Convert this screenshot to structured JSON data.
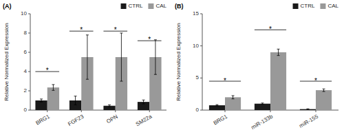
{
  "chart_data": [
    {
      "type": "bar",
      "title": "(A)",
      "categories": [
        "BRG1",
        "FGF23",
        "OPN",
        "SM22a"
      ],
      "series": [
        {
          "name": "CTRL",
          "color": "#1a1a1a",
          "values": [
            1.0,
            1.0,
            0.45,
            0.85
          ],
          "errors": [
            0.15,
            0.45,
            0.1,
            0.2
          ]
        },
        {
          "name": "CAL",
          "color": "#999999",
          "values": [
            2.35,
            5.5,
            5.5,
            5.5
          ],
          "errors": [
            0.3,
            2.3,
            2.5,
            1.8
          ]
        }
      ],
      "ylabel": "Relative Normalized Expression",
      "ylim": [
        0,
        10
      ],
      "yticks": [
        0,
        2,
        4,
        6,
        8,
        10
      ],
      "legend": "upper right",
      "annotations": [
        {
          "text": "*",
          "category": "BRG1",
          "y": 4.0,
          "label_y": 4.2
        },
        {
          "text": "*",
          "category": "FGF23",
          "y": 8.2,
          "label_y": 8.4
        },
        {
          "text": "*",
          "category": "OPN",
          "y": 8.2,
          "label_y": 8.4
        },
        {
          "text": "*",
          "category": "SM22a",
          "y": 7.2,
          "label_y": 7.4
        }
      ]
    },
    {
      "type": "bar",
      "title": "(B)",
      "categories": [
        "BRG1",
        "miR-133b",
        "miR-155"
      ],
      "series": [
        {
          "name": "CTRL",
          "color": "#1a1a1a",
          "values": [
            0.75,
            1.0,
            0.15
          ],
          "errors": [
            0.1,
            0.1,
            0.05
          ]
        },
        {
          "name": "CAL",
          "color": "#999999",
          "values": [
            2.0,
            9.0,
            3.1
          ],
          "errors": [
            0.25,
            0.5,
            0.2
          ]
        }
      ],
      "ylabel": "Relative Normalized Expression",
      "ylim": [
        0,
        15
      ],
      "yticks": [
        0,
        5,
        10,
        15
      ],
      "legend": "upper right",
      "annotations": [
        {
          "text": "*",
          "category": "BRG1",
          "y": 4.5,
          "label_y": 4.7
        },
        {
          "text": "*",
          "category": "miR-133b",
          "y": 12.5,
          "label_y": 12.7
        },
        {
          "text": "*",
          "category": "miR-155",
          "y": 4.5,
          "label_y": 4.7
        }
      ]
    }
  ]
}
